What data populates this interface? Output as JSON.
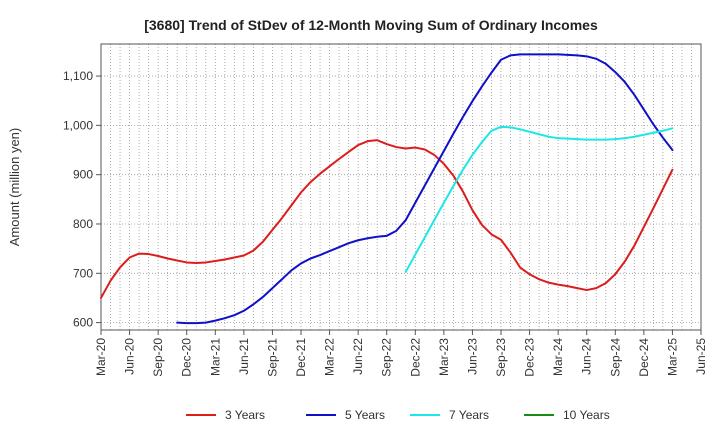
{
  "chart_data": {
    "type": "line",
    "title": "[3680]  Trend of StDev of 12-Month Moving Sum of Ordinary Incomes",
    "ylabel": "Amount (million yen)",
    "xlabel": "",
    "ylim": [
      585,
      1165
    ],
    "y_ticks": [
      600,
      700,
      800,
      900,
      1000,
      1100
    ],
    "y_tick_labels": [
      "600",
      "700",
      "800",
      "900",
      "1,000",
      "1,100"
    ],
    "x_range": [
      "2020-03",
      "2025-06"
    ],
    "x_ticks": [
      "2020-03",
      "2020-06",
      "2020-09",
      "2020-12",
      "2021-03",
      "2021-06",
      "2021-09",
      "2021-12",
      "2022-03",
      "2022-06",
      "2022-09",
      "2022-12",
      "2023-03",
      "2023-06",
      "2023-09",
      "2023-12",
      "2024-03",
      "2024-06",
      "2024-09",
      "2024-12",
      "2025-03",
      "2025-06"
    ],
    "x_tick_labels": [
      "Mar-20",
      "Jun-20",
      "Sep-20",
      "Dec-20",
      "Mar-21",
      "Jun-21",
      "Sep-21",
      "Dec-21",
      "Mar-22",
      "Jun-22",
      "Sep-22",
      "Dec-22",
      "Mar-23",
      "Jun-23",
      "Sep-23",
      "Dec-23",
      "Mar-24",
      "Jun-24",
      "Sep-24",
      "Dec-24",
      "Mar-25",
      "Jun-25"
    ],
    "grid": true,
    "legend_position": "bottom",
    "series": [
      {
        "name": "3 Years",
        "color": "#dd1c1c",
        "points": [
          [
            "2020-03",
            650
          ],
          [
            "2020-04",
            685
          ],
          [
            "2020-05",
            712
          ],
          [
            "2020-06",
            732
          ],
          [
            "2020-07",
            740
          ],
          [
            "2020-08",
            739
          ],
          [
            "2020-09",
            735
          ],
          [
            "2020-10",
            730
          ],
          [
            "2020-11",
            726
          ],
          [
            "2020-12",
            722
          ],
          [
            "2021-01",
            721
          ],
          [
            "2021-02",
            722
          ],
          [
            "2021-03",
            725
          ],
          [
            "2021-04",
            728
          ],
          [
            "2021-05",
            732
          ],
          [
            "2021-06",
            736
          ],
          [
            "2021-07",
            746
          ],
          [
            "2021-08",
            764
          ],
          [
            "2021-09",
            788
          ],
          [
            "2021-10",
            812
          ],
          [
            "2021-11",
            838
          ],
          [
            "2021-12",
            864
          ],
          [
            "2022-01",
            885
          ],
          [
            "2022-02",
            902
          ],
          [
            "2022-03",
            917
          ],
          [
            "2022-04",
            932
          ],
          [
            "2022-05",
            946
          ],
          [
            "2022-06",
            960
          ],
          [
            "2022-07",
            968
          ],
          [
            "2022-08",
            970
          ],
          [
            "2022-09",
            962
          ],
          [
            "2022-10",
            956
          ],
          [
            "2022-11",
            953
          ],
          [
            "2022-12",
            955
          ],
          [
            "2023-01",
            951
          ],
          [
            "2023-02",
            940
          ],
          [
            "2023-03",
            922
          ],
          [
            "2023-04",
            898
          ],
          [
            "2023-05",
            866
          ],
          [
            "2023-06",
            828
          ],
          [
            "2023-07",
            798
          ],
          [
            "2023-08",
            779
          ],
          [
            "2023-09",
            768
          ],
          [
            "2023-10",
            742
          ],
          [
            "2023-11",
            712
          ],
          [
            "2023-12",
            698
          ],
          [
            "2024-01",
            688
          ],
          [
            "2024-02",
            681
          ],
          [
            "2024-03",
            677
          ],
          [
            "2024-04",
            674
          ],
          [
            "2024-05",
            670
          ],
          [
            "2024-06",
            666
          ],
          [
            "2024-07",
            670
          ],
          [
            "2024-08",
            680
          ],
          [
            "2024-09",
            698
          ],
          [
            "2024-10",
            724
          ],
          [
            "2024-11",
            756
          ],
          [
            "2024-12",
            794
          ],
          [
            "2025-01",
            832
          ],
          [
            "2025-02",
            871
          ],
          [
            "2025-03",
            910
          ]
        ]
      },
      {
        "name": "5 Years",
        "color": "#1010c8",
        "points": [
          [
            "2020-11",
            600
          ],
          [
            "2020-12",
            599
          ],
          [
            "2021-01",
            599
          ],
          [
            "2021-02",
            600
          ],
          [
            "2021-03",
            604
          ],
          [
            "2021-04",
            609
          ],
          [
            "2021-05",
            615
          ],
          [
            "2021-06",
            624
          ],
          [
            "2021-07",
            637
          ],
          [
            "2021-08",
            652
          ],
          [
            "2021-09",
            670
          ],
          [
            "2021-10",
            688
          ],
          [
            "2021-11",
            706
          ],
          [
            "2021-12",
            720
          ],
          [
            "2022-01",
            730
          ],
          [
            "2022-02",
            737
          ],
          [
            "2022-03",
            745
          ],
          [
            "2022-04",
            753
          ],
          [
            "2022-05",
            761
          ],
          [
            "2022-06",
            767
          ],
          [
            "2022-07",
            771
          ],
          [
            "2022-08",
            774
          ],
          [
            "2022-09",
            776
          ],
          [
            "2022-10",
            786
          ],
          [
            "2022-11",
            808
          ],
          [
            "2022-12",
            843
          ],
          [
            "2023-01",
            878
          ],
          [
            "2023-02",
            913
          ],
          [
            "2023-03",
            948
          ],
          [
            "2023-04",
            983
          ],
          [
            "2023-05",
            1017
          ],
          [
            "2023-06",
            1049
          ],
          [
            "2023-07",
            1079
          ],
          [
            "2023-08",
            1107
          ],
          [
            "2023-09",
            1133
          ],
          [
            "2023-10",
            1142
          ],
          [
            "2023-11",
            1144
          ],
          [
            "2023-12",
            1144
          ],
          [
            "2024-01",
            1144
          ],
          [
            "2024-02",
            1144
          ],
          [
            "2024-03",
            1144
          ],
          [
            "2024-04",
            1143
          ],
          [
            "2024-05",
            1142
          ],
          [
            "2024-06",
            1140
          ],
          [
            "2024-07",
            1135
          ],
          [
            "2024-08",
            1125
          ],
          [
            "2024-09",
            1108
          ],
          [
            "2024-10",
            1088
          ],
          [
            "2024-11",
            1062
          ],
          [
            "2024-12",
            1032
          ],
          [
            "2025-01",
            1002
          ],
          [
            "2025-02",
            975
          ],
          [
            "2025-03",
            950
          ]
        ]
      },
      {
        "name": "7 Years",
        "color": "#1ee6e6",
        "points": [
          [
            "2022-11",
            703
          ],
          [
            "2022-12",
            738
          ],
          [
            "2023-01",
            773
          ],
          [
            "2023-02",
            808
          ],
          [
            "2023-03",
            843
          ],
          [
            "2023-04",
            877
          ],
          [
            "2023-05",
            910
          ],
          [
            "2023-06",
            940
          ],
          [
            "2023-07",
            966
          ],
          [
            "2023-08",
            989
          ],
          [
            "2023-09",
            997
          ],
          [
            "2023-10",
            996
          ],
          [
            "2023-11",
            992
          ],
          [
            "2023-12",
            987
          ],
          [
            "2024-01",
            982
          ],
          [
            "2024-02",
            977
          ],
          [
            "2024-03",
            974
          ],
          [
            "2024-04",
            973
          ],
          [
            "2024-05",
            972
          ],
          [
            "2024-06",
            971
          ],
          [
            "2024-07",
            971
          ],
          [
            "2024-08",
            971
          ],
          [
            "2024-09",
            972
          ],
          [
            "2024-10",
            974
          ],
          [
            "2024-11",
            977
          ],
          [
            "2024-12",
            981
          ],
          [
            "2025-01",
            985
          ],
          [
            "2025-02",
            989
          ],
          [
            "2025-03",
            994
          ]
        ]
      },
      {
        "name": "10 Years",
        "color": "#1a8a1a",
        "points": []
      }
    ]
  }
}
